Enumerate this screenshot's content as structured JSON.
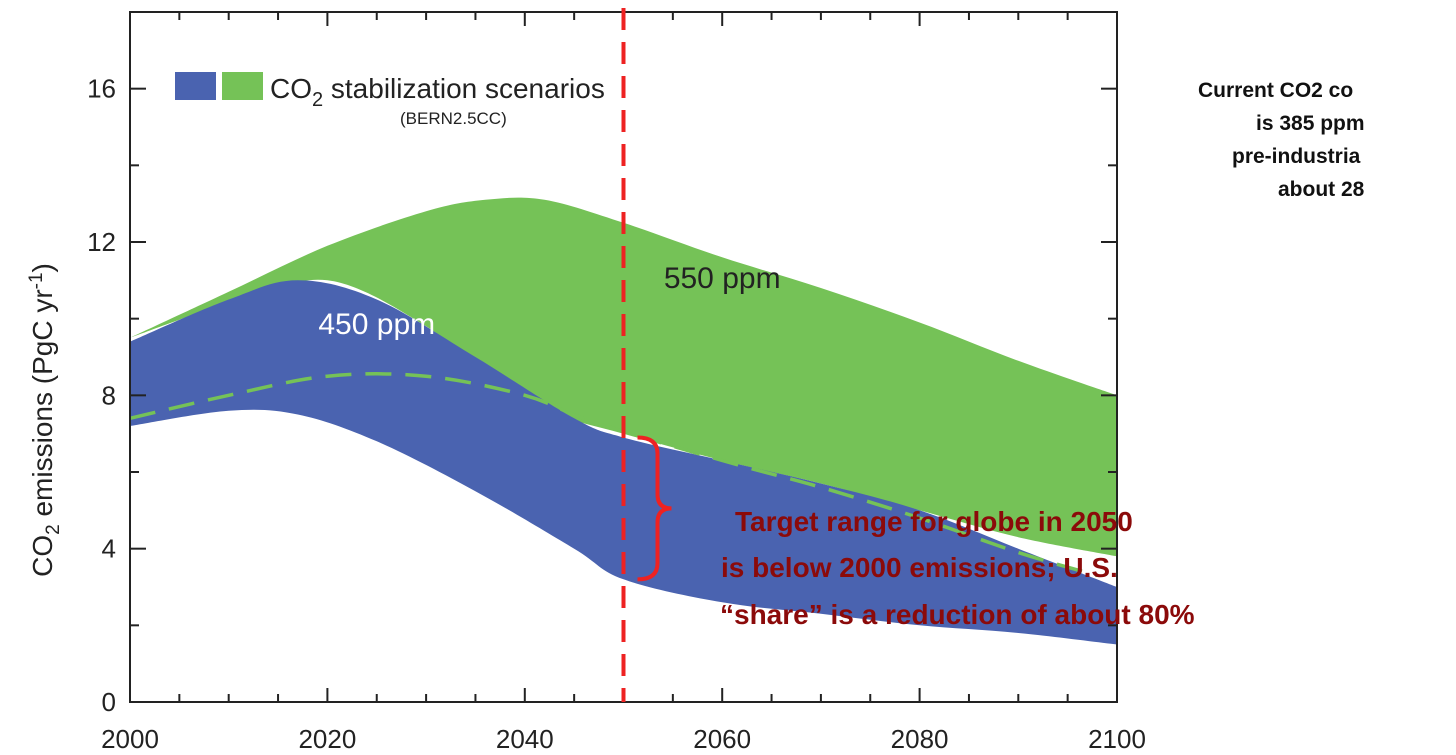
{
  "note": {
    "lines": [
      "Current CO2 co",
      "is 385 ppm",
      "pre-industria",
      "about 28"
    ]
  },
  "chart_data": {
    "type": "area",
    "ylabel": "CO₂ emissions (PgC yr⁻¹)",
    "ylabel_parts": {
      "pre": "CO",
      "sub": "2",
      "mid": " emissions (PgC yr",
      "sup": "-1",
      "post": ")"
    },
    "xlim": [
      2000,
      2100
    ],
    "ylim": [
      0,
      18
    ],
    "x_ticks": [
      2000,
      2020,
      2040,
      2060,
      2080,
      2100
    ],
    "y_ticks": [
      0,
      4,
      8,
      12,
      16
    ],
    "legend": {
      "text_pre": "CO",
      "text_sub": "2",
      "text_post": " stabilization scenarios",
      "subtext": "(BERN2.5CC)",
      "colors": [
        "#4a63b0",
        "#75c257"
      ]
    },
    "series": [
      {
        "name": "550 ppm",
        "color": "#75c257",
        "x": [
          2000,
          2010,
          2020,
          2030,
          2036,
          2042,
          2050,
          2060,
          2070,
          2080,
          2090,
          2100
        ],
        "upper": [
          9.5,
          10.7,
          11.9,
          12.8,
          13.1,
          13.1,
          12.5,
          11.6,
          10.8,
          9.9,
          8.9,
          8.0
        ],
        "lower": [
          9.5,
          10.4,
          11.0,
          9.8,
          8.5,
          7.6,
          7.0,
          6.3,
          5.7,
          5.0,
          4.3,
          3.8
        ]
      },
      {
        "name": "450 ppm",
        "color": "#4a63b0",
        "x": [
          2000,
          2010,
          2017,
          2025,
          2035,
          2045,
          2050,
          2060,
          2070,
          2080,
          2090,
          2100
        ],
        "upper": [
          9.4,
          10.5,
          11.0,
          10.5,
          9.0,
          7.4,
          6.9,
          6.3,
          5.7,
          5.0,
          4.0,
          3.0
        ],
        "lower": [
          7.2,
          7.6,
          7.5,
          6.8,
          5.5,
          4.0,
          3.2,
          2.6,
          2.3,
          2.0,
          1.8,
          1.5
        ]
      },
      {
        "name": "dashed",
        "color": "#75c257",
        "x": [
          2000,
          2010,
          2020,
          2030,
          2040,
          2047,
          2060,
          2070,
          2080,
          2090,
          2098
        ],
        "y": [
          7.4,
          8.0,
          8.5,
          8.5,
          8.0,
          7.3,
          6.3,
          5.6,
          4.8,
          3.9,
          3.3
        ]
      }
    ],
    "band_labels": [
      {
        "text": "450 ppm",
        "x": 2025,
        "y": 9.6,
        "color": "#ffffff"
      },
      {
        "text": "550 ppm",
        "x": 2060,
        "y": 10.8,
        "color": "#222222"
      }
    ],
    "vline": {
      "x": 2050,
      "color": "#ee2222"
    },
    "bracket": {
      "x": 2050,
      "y_top": 6.9,
      "y_bottom": 3.2,
      "color": "#ee2222"
    },
    "annotation": {
      "lines": [
        "Target range for globe in 2050",
        "is below 2000 emissions; U.S.",
        "“share” is a reduction of about 80%"
      ],
      "color": "#8b0a0a"
    }
  }
}
